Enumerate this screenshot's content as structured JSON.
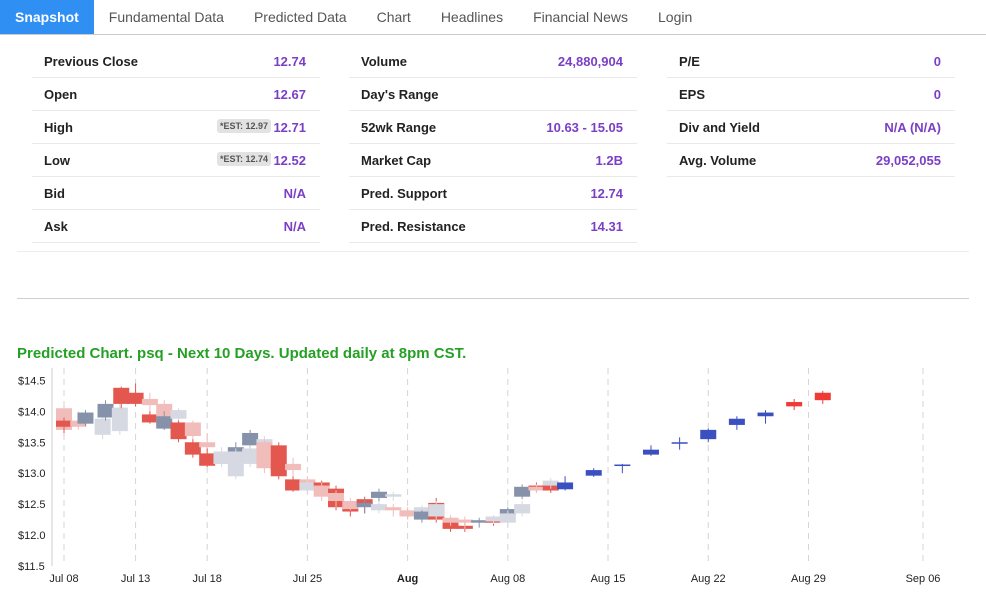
{
  "tabs": [
    {
      "label": "Snapshot",
      "active": true
    },
    {
      "label": "Fundamental Data",
      "active": false
    },
    {
      "label": "Predicted Data",
      "active": false
    },
    {
      "label": "Chart",
      "active": false
    },
    {
      "label": "Headlines",
      "active": false
    },
    {
      "label": "Financial News",
      "active": false
    },
    {
      "label": "Login",
      "active": false
    }
  ],
  "snapshot": {
    "col1": [
      {
        "label": "Previous Close",
        "value": "12.74",
        "est": ""
      },
      {
        "label": "Open",
        "value": "12.67",
        "est": ""
      },
      {
        "label": "High",
        "value": "12.71",
        "est": "*EST: 12.97"
      },
      {
        "label": "Low",
        "value": "12.52",
        "est": "*EST: 12.74"
      },
      {
        "label": "Bid",
        "value": "N/A",
        "est": ""
      },
      {
        "label": "Ask",
        "value": "N/A",
        "est": ""
      }
    ],
    "col2": [
      {
        "label": "Volume",
        "value": "24,880,904"
      },
      {
        "label": "Day's Range",
        "value": ""
      },
      {
        "label": "52wk Range",
        "value": "10.63 - 15.05"
      },
      {
        "label": "Market Cap",
        "value": "1.2B"
      },
      {
        "label": "Pred. Support",
        "value": "12.74"
      },
      {
        "label": "Pred. Resistance",
        "value": "14.31"
      }
    ],
    "col3": [
      {
        "label": "P/E",
        "value": "0"
      },
      {
        "label": "EPS",
        "value": "0"
      },
      {
        "label": "Div and Yield",
        "value": "N/A (N/A)"
      },
      {
        "label": "Avg. Volume",
        "value": "29,052,055"
      }
    ]
  },
  "chart_title": "Predicted Chart. psq - Next 10 Days. Updated daily at 8pm CST.",
  "chart_data": {
    "type": "candlestick",
    "ylim": [
      11.5,
      14.7
    ],
    "yticks": [
      "$11.5",
      "$12.0",
      "$12.5",
      "$13.0",
      "$13.5",
      "$14.0",
      "$14.5"
    ],
    "xticks": [
      {
        "label": "Jul 08",
        "bold": false,
        "day": 0
      },
      {
        "label": "Jul 13",
        "bold": false,
        "day": 5
      },
      {
        "label": "Jul 18",
        "bold": false,
        "day": 10
      },
      {
        "label": "Jul 25",
        "bold": false,
        "day": 17
      },
      {
        "label": "Aug",
        "bold": true,
        "day": 24
      },
      {
        "label": "Aug 08",
        "bold": false,
        "day": 31
      },
      {
        "label": "Aug 15",
        "bold": false,
        "day": 38
      },
      {
        "label": "Aug 22",
        "bold": false,
        "day": 45
      },
      {
        "label": "Aug 29",
        "bold": false,
        "day": 52
      },
      {
        "label": "Sep 06",
        "bold": false,
        "day": 60
      }
    ],
    "colors": {
      "up_dark": "#8592aa",
      "up_light": "#d6d9e1",
      "down_dark": "#e4574f",
      "down_light": "#f1bdbb",
      "pred_up": "#3a4fc0",
      "pred_down": "#f03a36"
    },
    "candles": [
      {
        "d": 0,
        "o": 13.7,
        "c": 14.05,
        "h": 14.1,
        "l": 13.6,
        "k": "down_light"
      },
      {
        "d": 0,
        "o": 13.75,
        "c": 13.85,
        "h": 13.9,
        "l": 13.65,
        "k": "down_dark"
      },
      {
        "d": 1,
        "o": 13.75,
        "c": 13.85,
        "h": 14.0,
        "l": 13.7,
        "k": "down_light"
      },
      {
        "d": 1.5,
        "o": 13.8,
        "c": 13.98,
        "h": 14.02,
        "l": 13.76,
        "k": "up_dark"
      },
      {
        "d": 2.7,
        "o": 13.62,
        "c": 13.88,
        "h": 14.0,
        "l": 13.55,
        "k": "up_light"
      },
      {
        "d": 2.9,
        "o": 13.9,
        "c": 14.12,
        "h": 14.18,
        "l": 13.85,
        "k": "up_dark"
      },
      {
        "d": 3.9,
        "o": 13.68,
        "c": 14.06,
        "h": 14.12,
        "l": 13.62,
        "k": "up_light"
      },
      {
        "d": 4.0,
        "o": 14.38,
        "c": 14.12,
        "h": 14.4,
        "l": 14.05,
        "k": "down_dark"
      },
      {
        "d": 5,
        "o": 14.3,
        "c": 14.12,
        "h": 14.45,
        "l": 14.08,
        "k": "down_dark"
      },
      {
        "d": 6,
        "o": 14.2,
        "c": 14.1,
        "h": 14.3,
        "l": 13.9,
        "k": "down_light"
      },
      {
        "d": 6,
        "o": 13.95,
        "c": 13.82,
        "h": 14.0,
        "l": 13.8,
        "k": "down_dark"
      },
      {
        "d": 7,
        "o": 14.12,
        "c": 13.75,
        "h": 14.18,
        "l": 13.7,
        "k": "down_light"
      },
      {
        "d": 7,
        "o": 13.72,
        "c": 13.92,
        "h": 14.0,
        "l": 13.7,
        "k": "up_dark"
      },
      {
        "d": 8,
        "o": 13.88,
        "c": 14.02,
        "h": 14.05,
        "l": 13.8,
        "k": "up_light"
      },
      {
        "d": 8,
        "o": 13.82,
        "c": 13.55,
        "h": 13.85,
        "l": 13.5,
        "k": "down_dark"
      },
      {
        "d": 9,
        "o": 13.82,
        "c": 13.6,
        "h": 13.85,
        "l": 13.55,
        "k": "down_light"
      },
      {
        "d": 9,
        "o": 13.5,
        "c": 13.3,
        "h": 13.55,
        "l": 13.25,
        "k": "down_dark"
      },
      {
        "d": 10,
        "o": 13.5,
        "c": 13.42,
        "h": 13.65,
        "l": 13.3,
        "k": "down_light"
      },
      {
        "d": 10,
        "o": 13.32,
        "c": 13.12,
        "h": 13.4,
        "l": 13.1,
        "k": "down_dark"
      },
      {
        "d": 11,
        "o": 13.35,
        "c": 13.15,
        "h": 13.4,
        "l": 13.1,
        "k": "down_light"
      },
      {
        "d": 11,
        "o": 13.15,
        "c": 13.35,
        "h": 13.42,
        "l": 13.1,
        "k": "up_light"
      },
      {
        "d": 12,
        "o": 13.35,
        "c": 13.42,
        "h": 13.5,
        "l": 13.3,
        "k": "up_dark"
      },
      {
        "d": 12,
        "o": 12.95,
        "c": 13.35,
        "h": 13.4,
        "l": 12.9,
        "k": "up_light"
      },
      {
        "d": 13,
        "o": 13.45,
        "c": 13.65,
        "h": 13.7,
        "l": 13.4,
        "k": "up_dark"
      },
      {
        "d": 13,
        "o": 13.15,
        "c": 13.4,
        "h": 13.45,
        "l": 13.1,
        "k": "up_light"
      },
      {
        "d": 14,
        "o": 13.4,
        "c": 13.55,
        "h": 13.6,
        "l": 13.35,
        "k": "up_light"
      },
      {
        "d": 14,
        "o": 13.5,
        "c": 13.08,
        "h": 13.55,
        "l": 13.0,
        "k": "down_light"
      },
      {
        "d": 15,
        "o": 13.45,
        "c": 13.05,
        "h": 13.5,
        "l": 13.0,
        "k": "down_dark"
      },
      {
        "d": 15,
        "o": 13.1,
        "c": 12.95,
        "h": 13.15,
        "l": 12.9,
        "k": "down_dark"
      },
      {
        "d": 16,
        "o": 13.15,
        "c": 13.05,
        "h": 13.25,
        "l": 12.95,
        "k": "down_light"
      },
      {
        "d": 16,
        "o": 12.9,
        "c": 12.72,
        "h": 12.95,
        "l": 12.7,
        "k": "down_dark"
      },
      {
        "d": 17,
        "o": 12.9,
        "c": 12.78,
        "h": 12.95,
        "l": 12.7,
        "k": "down_light"
      },
      {
        "d": 17,
        "o": 12.72,
        "c": 12.85,
        "h": 12.9,
        "l": 12.68,
        "k": "up_light"
      },
      {
        "d": 18,
        "o": 12.85,
        "c": 12.78,
        "h": 12.88,
        "l": 12.7,
        "k": "down_dark"
      },
      {
        "d": 18,
        "o": 12.8,
        "c": 12.62,
        "h": 12.85,
        "l": 12.55,
        "k": "down_light"
      },
      {
        "d": 19,
        "o": 12.75,
        "c": 12.45,
        "h": 12.8,
        "l": 12.4,
        "k": "down_dark"
      },
      {
        "d": 19,
        "o": 12.68,
        "c": 12.55,
        "h": 12.72,
        "l": 12.45,
        "k": "down_light"
      },
      {
        "d": 20,
        "o": 12.45,
        "c": 12.38,
        "h": 12.5,
        "l": 12.3,
        "k": "down_dark"
      },
      {
        "d": 20,
        "o": 12.55,
        "c": 12.42,
        "h": 12.6,
        "l": 12.4,
        "k": "down_light"
      },
      {
        "d": 21,
        "o": 12.58,
        "c": 12.48,
        "h": 12.62,
        "l": 12.35,
        "k": "down_dark"
      },
      {
        "d": 21,
        "o": 12.45,
        "c": 12.52,
        "h": 12.6,
        "l": 12.35,
        "k": "up_dark"
      },
      {
        "d": 22,
        "o": 12.4,
        "c": 12.5,
        "h": 12.55,
        "l": 12.35,
        "k": "up_light"
      },
      {
        "d": 22,
        "o": 12.6,
        "c": 12.7,
        "h": 12.75,
        "l": 12.55,
        "k": "up_dark"
      },
      {
        "d": 23,
        "o": 12.45,
        "c": 12.4,
        "h": 12.5,
        "l": 12.3,
        "k": "down_light"
      },
      {
        "d": 23,
        "o": 12.62,
        "c": 12.66,
        "h": 12.7,
        "l": 12.55,
        "k": "up_light"
      },
      {
        "d": 24,
        "o": 12.38,
        "c": 12.32,
        "h": 12.42,
        "l": 12.28,
        "k": "down_dark"
      },
      {
        "d": 24,
        "o": 12.4,
        "c": 12.3,
        "h": 12.45,
        "l": 12.25,
        "k": "down_light"
      },
      {
        "d": 25,
        "o": 12.35,
        "c": 12.45,
        "h": 12.48,
        "l": 12.3,
        "k": "up_light"
      },
      {
        "d": 25,
        "o": 12.25,
        "c": 12.38,
        "h": 12.4,
        "l": 12.2,
        "k": "up_dark"
      },
      {
        "d": 26,
        "o": 12.52,
        "c": 12.25,
        "h": 12.6,
        "l": 12.2,
        "k": "down_dark"
      },
      {
        "d": 26,
        "o": 12.3,
        "c": 12.5,
        "h": 12.55,
        "l": 12.25,
        "k": "up_light"
      },
      {
        "d": 27,
        "o": 12.25,
        "c": 12.1,
        "h": 12.3,
        "l": 12.05,
        "k": "down_dark"
      },
      {
        "d": 27,
        "o": 12.28,
        "c": 12.2,
        "h": 12.32,
        "l": 12.15,
        "k": "down_light"
      },
      {
        "d": 28,
        "o": 12.15,
        "c": 12.1,
        "h": 12.22,
        "l": 12.05,
        "k": "down_dark"
      },
      {
        "d": 28,
        "o": 12.2,
        "c": 12.25,
        "h": 12.3,
        "l": 12.1,
        "k": "down_light"
      },
      {
        "d": 29,
        "o": 12.2,
        "c": 12.24,
        "h": 12.28,
        "l": 12.12,
        "k": "up_dark"
      },
      {
        "d": 30,
        "o": 12.2,
        "c": 12.25,
        "h": 12.3,
        "l": 12.15,
        "k": "down_dark"
      },
      {
        "d": 30,
        "o": 12.22,
        "c": 12.3,
        "h": 12.32,
        "l": 12.18,
        "k": "up_light"
      },
      {
        "d": 31,
        "o": 12.32,
        "c": 12.42,
        "h": 12.45,
        "l": 12.25,
        "k": "up_dark"
      },
      {
        "d": 31,
        "o": 12.2,
        "c": 12.35,
        "h": 12.4,
        "l": 12.15,
        "k": "up_light"
      },
      {
        "d": 32,
        "o": 12.62,
        "c": 12.78,
        "h": 12.82,
        "l": 12.58,
        "k": "up_dark"
      },
      {
        "d": 32,
        "o": 12.35,
        "c": 12.5,
        "h": 12.55,
        "l": 12.3,
        "k": "up_light"
      },
      {
        "d": 33,
        "o": 12.75,
        "c": 12.8,
        "h": 12.85,
        "l": 12.7,
        "k": "down_dark"
      },
      {
        "d": 33,
        "o": 12.72,
        "c": 12.78,
        "h": 12.82,
        "l": 12.68,
        "k": "down_light"
      },
      {
        "d": 34,
        "o": 12.72,
        "c": 12.82,
        "h": 12.86,
        "l": 12.68,
        "k": "down_dark"
      },
      {
        "d": 34,
        "o": 12.8,
        "c": 12.88,
        "h": 12.92,
        "l": 12.75,
        "k": "up_light"
      },
      {
        "d": 35,
        "o": 12.74,
        "c": 12.85,
        "h": 12.95,
        "l": 12.72,
        "k": "pred_up"
      },
      {
        "d": 37,
        "o": 12.96,
        "c": 13.05,
        "h": 13.08,
        "l": 12.94,
        "k": "pred_up"
      },
      {
        "d": 39,
        "o": 13.12,
        "c": 13.14,
        "h": 13.15,
        "l": 13.0,
        "k": "pred_up"
      },
      {
        "d": 41,
        "o": 13.3,
        "c": 13.38,
        "h": 13.45,
        "l": 13.28,
        "k": "pred_up"
      },
      {
        "d": 43,
        "o": 13.48,
        "c": 13.5,
        "h": 13.58,
        "l": 13.38,
        "k": "pred_up"
      },
      {
        "d": 45,
        "o": 13.55,
        "c": 13.7,
        "h": 13.72,
        "l": 13.5,
        "k": "pred_up"
      },
      {
        "d": 47,
        "o": 13.78,
        "c": 13.88,
        "h": 13.92,
        "l": 13.7,
        "k": "pred_up"
      },
      {
        "d": 49,
        "o": 13.92,
        "c": 13.98,
        "h": 14.02,
        "l": 13.8,
        "k": "pred_up"
      },
      {
        "d": 51,
        "o": 14.08,
        "c": 14.15,
        "h": 14.2,
        "l": 14.02,
        "k": "pred_down"
      },
      {
        "d": 53,
        "o": 14.18,
        "c": 14.3,
        "h": 14.33,
        "l": 14.12,
        "k": "pred_down"
      }
    ]
  }
}
